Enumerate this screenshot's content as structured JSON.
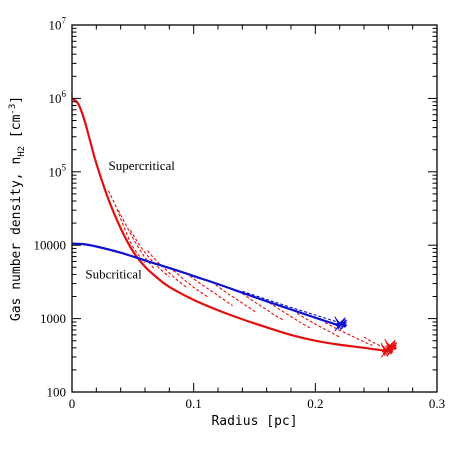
{
  "chart_data": {
    "type": "line",
    "title": "",
    "xlabel": "Radius [pc]",
    "ylabel_prefix": "Gas number density, n",
    "ylabel_sub": "H2",
    "ylabel_unit_pre": " [cm",
    "ylabel_unit_exp": "-3",
    "ylabel_unit_post": "]",
    "xscale": "linear",
    "yscale": "log",
    "xlim": [
      0,
      0.3
    ],
    "ylim": [
      100,
      10000000
    ],
    "grid": false,
    "xticks": [
      {
        "value": 0,
        "label": "0"
      },
      {
        "value": 0.1,
        "label": "0.1"
      },
      {
        "value": 0.2,
        "label": "0.2"
      },
      {
        "value": 0.3,
        "label": "0.3"
      }
    ],
    "yticks": [
      {
        "value": 100,
        "label": "100"
      },
      {
        "value": 1000,
        "label": "1000"
      },
      {
        "value": 10000,
        "label": "10000"
      },
      {
        "value": 100000,
        "label": "10",
        "exp": "5"
      },
      {
        "value": 1000000,
        "label": "10",
        "exp": "6"
      },
      {
        "value": 10000000,
        "label": "10",
        "exp": "7"
      }
    ],
    "annotations": [
      {
        "text": "Supercritical",
        "x": 0.03,
        "y": 100000
      },
      {
        "text": "Subcritical",
        "x": 0.011,
        "y": 3300
      }
    ],
    "series": [
      {
        "color": "#e01010",
        "style": "solid",
        "x": [
          0,
          0.005,
          0.01,
          0.015,
          0.02,
          0.03,
          0.04,
          0.05,
          0.06,
          0.07,
          0.08,
          0.1,
          0.12,
          0.14,
          0.16,
          0.18,
          0.2,
          0.22,
          0.24,
          0.26
        ],
        "y": [
          1000000,
          850000,
          520000,
          260000,
          130000,
          42000,
          17000,
          8300,
          5100,
          3600,
          2700,
          1800,
          1300,
          980,
          760,
          600,
          500,
          440,
          400,
          360
        ]
      },
      {
        "color": "#1010d0",
        "style": "solid",
        "x": [
          0,
          0.01,
          0.02,
          0.04,
          0.06,
          0.08,
          0.1,
          0.12,
          0.14,
          0.16,
          0.18,
          0.2,
          0.22
        ],
        "y": [
          10500,
          10300,
          9600,
          7900,
          6200,
          4900,
          3800,
          2950,
          2250,
          1720,
          1330,
          1030,
          800
        ]
      }
    ],
    "dashed_curves": [
      {
        "color": "#e01010",
        "x": [
          0.03,
          0.036,
          0.042,
          0.05,
          0.06
        ],
        "y": [
          55000,
          34000,
          19000,
          9500,
          5800
        ]
      },
      {
        "color": "#e01010",
        "x": [
          0.038,
          0.045,
          0.052,
          0.06,
          0.068
        ],
        "y": [
          30000,
          18000,
          11000,
          6800,
          4700
        ]
      },
      {
        "color": "#e01010",
        "x": [
          0.048,
          0.056,
          0.064,
          0.072,
          0.08
        ],
        "y": [
          16000,
          9800,
          6600,
          4800,
          3700
        ]
      },
      {
        "color": "#e01010",
        "x": [
          0.062,
          0.07,
          0.078,
          0.086,
          0.095
        ],
        "y": [
          8400,
          6000,
          4500,
          3400,
          2600
        ]
      },
      {
        "color": "#e01010",
        "x": [
          0.08,
          0.088,
          0.096,
          0.104,
          0.112
        ],
        "y": [
          5000,
          3900,
          3000,
          2400,
          1950
        ]
      },
      {
        "color": "#e01010",
        "x": [
          0.097,
          0.106,
          0.115,
          0.124,
          0.132
        ],
        "y": [
          3800,
          2950,
          2350,
          1850,
          1500
        ]
      },
      {
        "color": "#e01010",
        "x": [
          0.118,
          0.127,
          0.136,
          0.145,
          0.152
        ],
        "y": [
          2900,
          2250,
          1800,
          1430,
          1200
        ]
      },
      {
        "color": "#e01010",
        "x": [
          0.14,
          0.149,
          0.158,
          0.166,
          0.174
        ],
        "y": [
          2200,
          1730,
          1390,
          1130,
          950
        ]
      },
      {
        "color": "#e01010",
        "x": [
          0.162,
          0.171,
          0.18,
          0.188,
          0.196
        ],
        "y": [
          1650,
          1320,
          1070,
          880,
          740
        ]
      },
      {
        "color": "#e01010",
        "x": [
          0.185,
          0.194,
          0.203,
          0.212,
          0.22
        ],
        "y": [
          1180,
          960,
          790,
          660,
          560
        ]
      },
      {
        "color": "#e01010",
        "x": [
          0.208,
          0.218,
          0.228,
          0.238,
          0.247
        ],
        "y": [
          880,
          720,
          600,
          500,
          430
        ]
      },
      {
        "color": "#e01010",
        "x": [
          0.24,
          0.248,
          0.256,
          0.263
        ],
        "y": [
          560,
          470,
          410,
          370
        ]
      },
      {
        "color": "#1010d0",
        "x": [
          0.14,
          0.16,
          0.18,
          0.2,
          0.218
        ],
        "y": [
          2350,
          1830,
          1420,
          1120,
          900
        ]
      }
    ],
    "noise_clusters": [
      {
        "color": "#1010d0",
        "x": 0.221,
        "y": 850
      },
      {
        "color": "#e01010",
        "x": 0.259,
        "y": 370
      },
      {
        "color": "#e01010",
        "x": 0.262,
        "y": 420
      }
    ]
  }
}
